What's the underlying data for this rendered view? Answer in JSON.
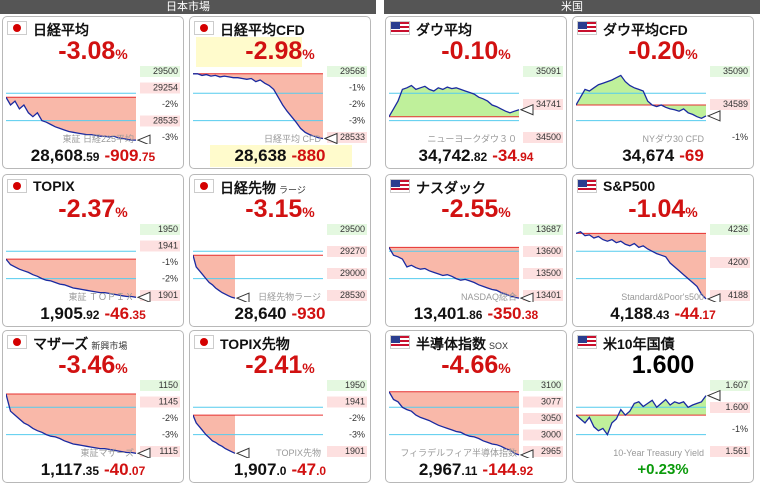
{
  "sections": {
    "japan": "日本市場",
    "us": "米国"
  },
  "colors": {
    "down": "#d11111",
    "up": "#0a9a0a",
    "fill_red": "#f8b0a0",
    "fill_green": "#b8ee90",
    "line": "#1a2aa0",
    "cyan": "#55ccee",
    "redline": "#e63030"
  },
  "cards": [
    {
      "title": "日経平均",
      "sub": "",
      "flag": "jp",
      "change_pct": "-3.08",
      "pct_unit": "%",
      "price": "28,608",
      "price_dec": ".59",
      "change": "-909",
      "change_dec": ".75",
      "watermark": "東証 日経225平均",
      "labels": [
        "29500",
        "29254",
        "-2%",
        "28535",
        "-3%"
      ],
      "series": [
        0.6,
        0.5,
        0.55,
        0.45,
        0.5,
        0.4,
        0.35,
        0.4,
        0.3,
        0.28,
        0.25,
        0.22,
        0.2,
        0.18,
        0.16,
        0.15,
        0.14,
        0.13,
        0.12,
        0.12,
        0.11,
        0.1,
        0.1,
        0.09,
        0.1,
        0.08,
        0.07,
        0.06,
        0.05,
        0.05
      ]
    },
    {
      "title": "日経平均CFD",
      "sub": "",
      "flag": "jp",
      "change_pct": "-2.98",
      "pct_unit": "%",
      "price": "28,638",
      "price_dec": "",
      "change": "-880",
      "change_dec": "",
      "watermark": "日経平均 CFD",
      "labels": [
        "29568",
        "-1%",
        "-2%",
        "-3%",
        "28533"
      ],
      "series": [
        0.9,
        0.9,
        0.88,
        0.89,
        0.87,
        0.88,
        0.86,
        0.87,
        0.86,
        0.85,
        0.85,
        0.84,
        0.83,
        0.84,
        0.8,
        0.82,
        0.78,
        0.75,
        0.7,
        0.6,
        0.5,
        0.42,
        0.35,
        0.28,
        0.2,
        0.15,
        0.12,
        0.1,
        0.08,
        0.07
      ]
    },
    {
      "title": "ダウ平均",
      "sub": "",
      "flag": "us",
      "change_pct": "-0.10",
      "pct_unit": "%",
      "price": "34,742",
      "price_dec": ".82",
      "change": "-34",
      "change_dec": ".94",
      "watermark": "ニューヨークダウ３０",
      "labels": [
        "35091",
        "34741",
        "34500"
      ],
      "series": [
        0.35,
        0.45,
        0.55,
        0.7,
        0.72,
        0.75,
        0.7,
        0.72,
        0.74,
        0.7,
        0.68,
        0.72,
        0.7,
        0.73,
        0.71,
        0.72,
        0.7,
        0.68,
        0.66,
        0.64,
        0.6,
        0.58,
        0.55,
        0.5,
        0.48,
        0.45,
        0.42,
        0.4,
        0.42,
        0.44
      ]
    },
    {
      "title": "ダウ平均CFD",
      "sub": "",
      "flag": "us",
      "change_pct": "-0.20",
      "pct_unit": "%",
      "price": "34,674",
      "price_dec": "",
      "change": "-69",
      "change_dec": "",
      "watermark": "NYダウ30 CFD",
      "labels": [
        "35090",
        "34589",
        "-1%"
      ],
      "series": [
        0.5,
        0.6,
        0.7,
        0.68,
        0.72,
        0.76,
        0.78,
        0.8,
        0.82,
        0.85,
        0.88,
        0.8,
        0.75,
        0.72,
        0.7,
        0.68,
        0.55,
        0.5,
        0.48,
        0.5,
        0.47,
        0.45,
        0.44,
        0.42,
        0.45,
        0.4,
        0.38,
        0.35,
        0.33,
        0.36
      ]
    },
    {
      "title": "TOPIX",
      "sub": "",
      "flag": "jp",
      "change_pct": "-2.37",
      "pct_unit": "%",
      "price": "1,905",
      "price_dec": ".92",
      "change": "-46",
      "change_dec": ".35",
      "watermark": "東証 ＴＯＰＩＸ",
      "labels": [
        "1950",
        "1941",
        "-1%",
        "-2%",
        "1901"
      ],
      "series": [
        0.55,
        0.48,
        0.45,
        0.42,
        0.4,
        0.38,
        0.35,
        0.33,
        0.3,
        0.28,
        0.27,
        0.25,
        0.23,
        0.22,
        0.2,
        0.18,
        0.17,
        0.16,
        0.15,
        0.14,
        0.13,
        0.12,
        0.12,
        0.11,
        0.1,
        0.09,
        0.08,
        0.07,
        0.07,
        0.06
      ]
    },
    {
      "title": "日経先物",
      "sub": "ラージ",
      "flag": "jp",
      "change_pct": "-3.15",
      "pct_unit": "%",
      "price": "28,640",
      "price_dec": "",
      "change": "-930",
      "change_dec": "",
      "watermark": "日経先物ラージ",
      "labels": [
        "29500",
        "29270",
        "29000",
        "28530"
      ],
      "series": [
        0.6,
        0.45,
        0.4,
        0.35,
        0.3,
        0.25,
        0.22,
        0.18,
        0.15,
        0.12,
        0.1,
        0.08,
        0.06,
        0.05
      ]
    },
    {
      "title": "ナスダック",
      "sub": "",
      "flag": "us",
      "change_pct": "-2.55",
      "pct_unit": "%",
      "price": "13,401",
      "price_dec": ".86",
      "change": "-350",
      "change_dec": ".38",
      "watermark": "NASDAQ総合",
      "labels": [
        "13687",
        "13600",
        "13500",
        "13401"
      ],
      "series": [
        0.7,
        0.6,
        0.58,
        0.55,
        0.45,
        0.47,
        0.44,
        0.42,
        0.43,
        0.4,
        0.38,
        0.36,
        0.34,
        0.35,
        0.33,
        0.3,
        0.28,
        0.29,
        0.27,
        0.25,
        0.22,
        0.2,
        0.18,
        0.16,
        0.15,
        0.12,
        0.1,
        0.08,
        0.06,
        0.05
      ]
    },
    {
      "title": "S&P500",
      "sub": "",
      "flag": "us",
      "change_pct": "-1.04",
      "pct_unit": "%",
      "price": "4,188",
      "price_dec": ".43",
      "change": "-44",
      "change_dec": ".17",
      "watermark": "Standard&Poor's500",
      "labels": [
        "4236",
        "4200",
        "4188"
      ],
      "series": [
        0.88,
        0.9,
        0.85,
        0.86,
        0.82,
        0.84,
        0.8,
        0.78,
        0.8,
        0.76,
        0.78,
        0.74,
        0.72,
        0.75,
        0.7,
        0.72,
        0.68,
        0.65,
        0.62,
        0.6,
        0.58,
        0.5,
        0.45,
        0.4,
        0.35,
        0.3,
        0.25,
        0.2,
        0.1,
        0.04
      ]
    },
    {
      "title": "マザーズ",
      "sub": "新興市場",
      "flag": "jp",
      "change_pct": "-3.46",
      "pct_unit": "%",
      "price": "1,117",
      "price_dec": ".35",
      "change": "-40",
      "change_dec": ".07",
      "watermark": "東証マザーズ",
      "labels": [
        "1150",
        "1145",
        "-2%",
        "-3%",
        "1115"
      ],
      "series": [
        0.82,
        0.6,
        0.55,
        0.5,
        0.45,
        0.42,
        0.38,
        0.35,
        0.33,
        0.3,
        0.28,
        0.27,
        0.25,
        0.22,
        0.2,
        0.18,
        0.17,
        0.16,
        0.15,
        0.14,
        0.13,
        0.12,
        0.12,
        0.11,
        0.1,
        0.09,
        0.08,
        0.07,
        0.07,
        0.06
      ]
    },
    {
      "title": "TOPIX先物",
      "sub": "",
      "flag": "jp",
      "change_pct": "-2.41",
      "pct_unit": "%",
      "price": "1,907",
      "price_dec": ".0",
      "change": "-47",
      "change_dec": ".0",
      "watermark": "TOPIX先物",
      "labels": [
        "1950",
        "1941",
        "-2%",
        "-3%",
        "1901"
      ],
      "series": [
        0.55,
        0.45,
        0.4,
        0.35,
        0.3,
        0.26,
        0.22,
        0.2,
        0.17,
        0.15,
        0.12,
        0.1,
        0.08,
        0.06
      ]
    },
    {
      "title": "半導体指数",
      "sub": "SOX",
      "flag": "us",
      "change_pct": "-4.66",
      "pct_unit": "%",
      "price": "2,967",
      "price_dec": ".11",
      "change": "-144",
      "change_dec": ".92",
      "watermark": "フィラデルフィア半導体指数",
      "labels": [
        "3100",
        "3077",
        "3050",
        "3000",
        "2965"
      ],
      "series": [
        0.85,
        0.75,
        0.72,
        0.65,
        0.62,
        0.6,
        0.55,
        0.52,
        0.5,
        0.48,
        0.45,
        0.42,
        0.4,
        0.38,
        0.36,
        0.34,
        0.33,
        0.3,
        0.28,
        0.27,
        0.25,
        0.22,
        0.2,
        0.18,
        0.17,
        0.15,
        0.12,
        0.1,
        0.06,
        0.04
      ]
    },
    {
      "title": "米10年国債",
      "sub": "",
      "flag": "us",
      "change_pct": "1.600",
      "pct_unit": "",
      "price": "",
      "price_dec": "",
      "change": "",
      "change_dec": "",
      "watermark": "10-Year Treasury Yield",
      "change_text": "+0.23%",
      "labels": [
        "1.607",
        "1.600",
        "-1%",
        "1.561"
      ],
      "series": [
        0.55,
        0.5,
        0.45,
        0.52,
        0.4,
        0.35,
        0.38,
        0.3,
        0.45,
        0.5,
        0.62,
        0.55,
        0.6,
        0.7,
        0.72,
        0.66,
        0.7,
        0.74,
        0.65,
        0.7,
        0.75,
        0.68,
        0.72,
        0.7,
        0.72,
        0.65,
        0.68,
        0.7,
        0.72,
        0.8
      ]
    }
  ]
}
